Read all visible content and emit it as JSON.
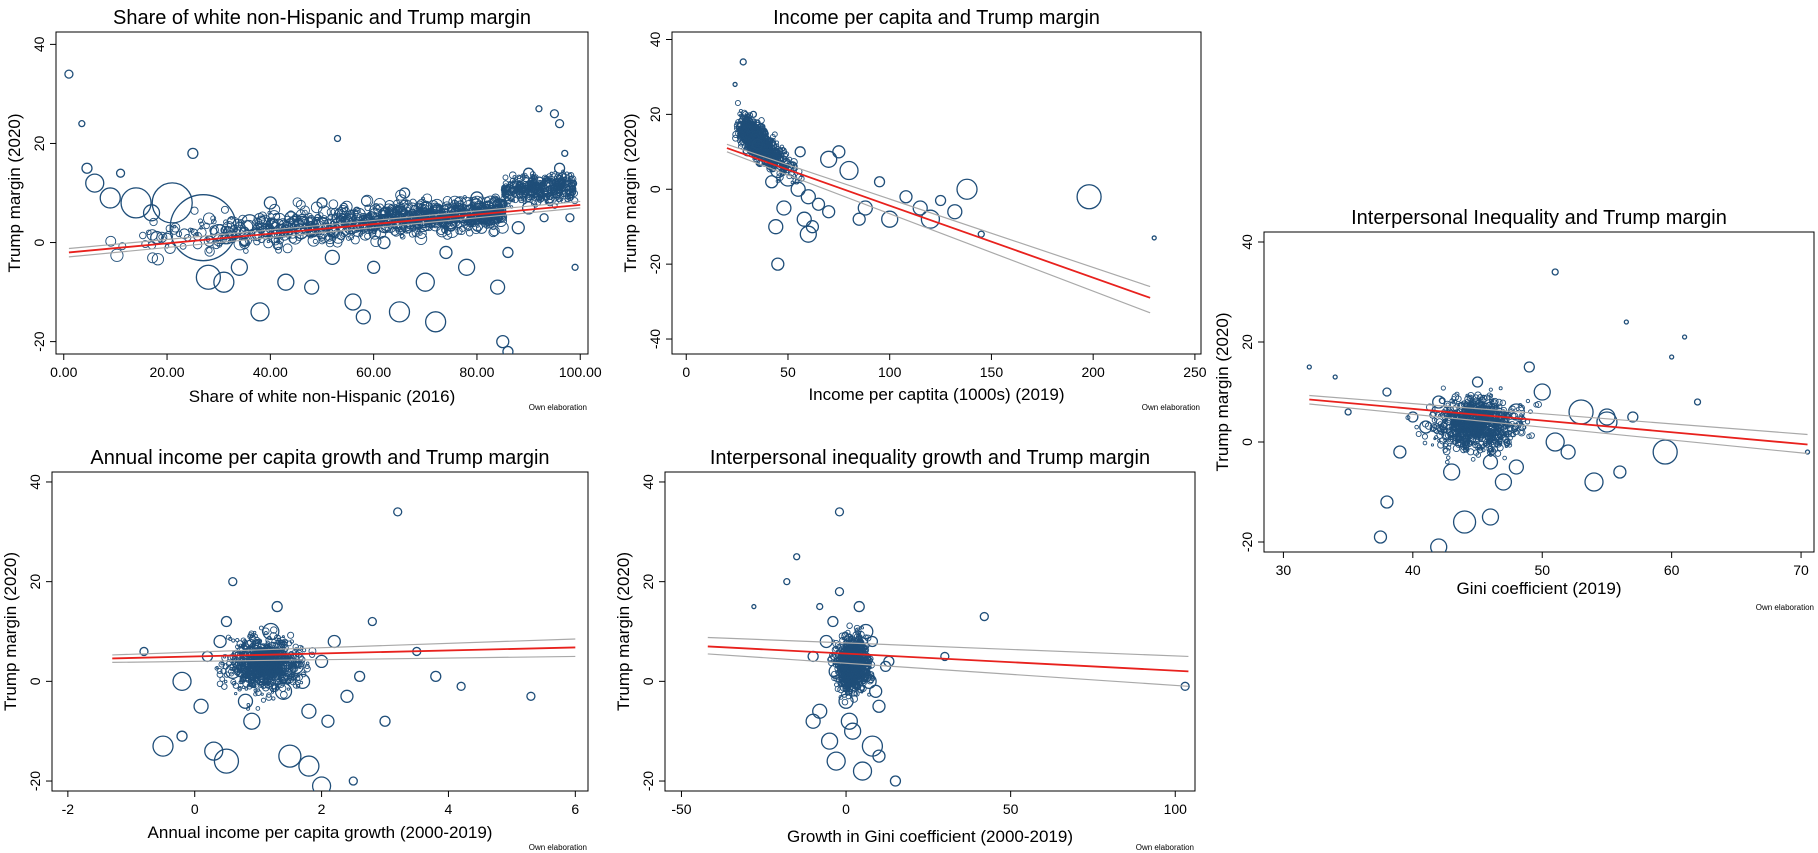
{
  "chart_data": [
    {
      "type": "scatter",
      "title": "Share of white non-Hispanic and Trump margin",
      "xlabel": "Share of white non-Hispanic (2016)",
      "ylabel": "Trump margin (2020)",
      "note": "Own elaboration",
      "xlim": [
        -1.5,
        101.5
      ],
      "ylim": [
        -22.5,
        42.5
      ],
      "xticks": [
        "0.00",
        "20.00",
        "40.00",
        "60.00",
        "80.00",
        "100.00"
      ],
      "yticks": [
        "-20",
        "0",
        "20",
        "40"
      ],
      "fit_line": {
        "x": [
          1,
          100
        ],
        "y": [
          -2.0,
          7.6
        ]
      },
      "ci_upper": {
        "x": [
          1,
          100
        ],
        "y": [
          -1.2,
          8.3
        ]
      },
      "ci_lower": {
        "x": [
          1,
          100
        ],
        "y": [
          -2.9,
          7.0
        ]
      },
      "series": [
        {
          "x": [
            1,
            3.5,
            4.5,
            6,
            9,
            11,
            14,
            17,
            21,
            25,
            27,
            53,
            92,
            95,
            96,
            85,
            86,
            58,
            65
          ],
          "y": [
            34,
            24,
            15,
            12,
            9,
            14,
            8,
            6,
            8,
            18,
            3,
            21,
            27,
            26,
            24,
            -20,
            -22,
            -15,
            -14
          ],
          "size": [
            4,
            3,
            5,
            9,
            10,
            4,
            15,
            8,
            20,
            5,
            33,
            3,
            3,
            4,
            4,
            6,
            5,
            7,
            10
          ]
        },
        {
          "x": [
            18,
            28,
            31,
            34,
            36,
            38,
            43,
            46,
            52,
            56,
            62,
            65,
            70,
            72,
            75,
            78,
            80,
            84,
            88,
            90,
            92,
            94,
            96,
            98,
            55,
            60,
            66,
            74,
            82,
            86,
            90,
            93,
            95,
            97,
            99,
            44,
            48,
            50,
            40,
            30
          ],
          "y": [
            1,
            -7,
            -8,
            -5,
            4,
            -14,
            -8,
            2,
            -3,
            -12,
            0,
            6,
            -8,
            -16,
            4,
            -5,
            9,
            -9,
            3,
            7,
            12,
            9,
            15,
            5,
            4,
            -5,
            10,
            -2,
            6,
            -2,
            14,
            5,
            11,
            18,
            -5,
            5,
            -9,
            8,
            8,
            2
          ],
          "size": [
            6,
            12,
            10,
            8,
            8,
            9,
            8,
            6,
            7,
            8,
            6,
            7,
            9,
            10,
            6,
            8,
            6,
            7,
            6,
            6,
            6,
            5,
            5,
            4,
            5,
            6,
            5,
            6,
            5,
            5,
            5,
            4,
            4,
            3,
            3,
            6,
            7,
            5,
            6,
            8
          ]
        }
      ]
    },
    {
      "type": "scatter",
      "title": "Income per capita and Trump margin",
      "xlabel": "Income per captita (1000s) (2019)",
      "ylabel": "Trump margin (2020)",
      "note": "Own elaboration",
      "xlim": [
        -7,
        253
      ],
      "ylim": [
        -44,
        42
      ],
      "xticks": [
        "0",
        "50",
        "100",
        "150",
        "200",
        "250"
      ],
      "yticks": [
        "-40",
        "-20",
        "0",
        "20",
        "40"
      ],
      "fit_line": {
        "x": [
          20,
          228
        ],
        "y": [
          11,
          -29
        ]
      },
      "ci_upper": {
        "x": [
          20,
          228
        ],
        "y": [
          12,
          -26
        ]
      },
      "ci_lower": {
        "x": [
          20,
          228
        ],
        "y": [
          10,
          -33
        ]
      },
      "series": [
        {
          "x": [
            28,
            24,
            70,
            75,
            80,
            88,
            95,
            100,
            108,
            115,
            120,
            125,
            132,
            138,
            145,
            198,
            230,
            85,
            60,
            45
          ],
          "y": [
            34,
            28,
            8,
            10,
            5,
            -5,
            2,
            -8,
            -2,
            -5,
            -8,
            -3,
            -6,
            0,
            -12,
            -2,
            -13,
            -8,
            -12,
            -20
          ],
          "size": [
            3,
            2,
            8,
            6,
            9,
            7,
            5,
            8,
            6,
            7,
            9,
            5,
            7,
            10,
            3,
            12,
            2,
            6,
            8,
            6
          ]
        },
        {
          "x": [
            30,
            35,
            40,
            45,
            50,
            55,
            60,
            65,
            38,
            42,
            48,
            52,
            58,
            62,
            70,
            33,
            44,
            56
          ],
          "y": [
            10,
            12,
            8,
            5,
            3,
            0,
            -2,
            -4,
            15,
            2,
            -5,
            6,
            -8,
            -10,
            -6,
            20,
            -10,
            10
          ],
          "size": [
            4,
            5,
            6,
            7,
            8,
            7,
            7,
            6,
            4,
            6,
            7,
            5,
            7,
            6,
            6,
            3,
            7,
            5
          ]
        }
      ]
    },
    {
      "type": "scatter",
      "title": "Annual income per capita growth and Trump margin",
      "xlabel": "Annual income per capita growth (2000-2019)",
      "ylabel": "Trump margin (2020)",
      "note": "Own elaboration",
      "xlim": [
        -2.25,
        6.2
      ],
      "ylim": [
        -22,
        42
      ],
      "xticks": [
        "-2",
        "0",
        "2",
        "4",
        "6"
      ],
      "yticks": [
        "-20",
        "0",
        "20",
        "40"
      ],
      "fit_line": {
        "x": [
          -1.3,
          6
        ],
        "y": [
          4.6,
          6.8
        ]
      },
      "ci_upper": {
        "x": [
          -1.3,
          6
        ],
        "y": [
          5.3,
          8.5
        ]
      },
      "ci_lower": {
        "x": [
          -1.3,
          6
        ],
        "y": [
          3.8,
          5.0
        ]
      },
      "series": [
        {
          "x": [
            -0.5,
            -0.2,
            -0.8,
            0.3,
            0.5,
            1.5,
            1.8,
            2.0,
            2.5,
            3.0,
            3.5,
            3.8,
            4.2,
            5.3,
            3.2,
            -0.2,
            0.6
          ],
          "y": [
            -13,
            -11,
            6,
            -14,
            -16,
            -15,
            -17,
            -21,
            -20,
            -8,
            6,
            1,
            -1,
            -3,
            34,
            0,
            20
          ],
          "size": [
            10,
            5,
            4,
            9,
            12,
            11,
            10,
            9,
            4,
            5,
            4,
            5,
            4,
            4,
            4,
            9,
            4
          ]
        },
        {
          "x": [
            0.2,
            0.4,
            0.6,
            0.8,
            1.0,
            1.2,
            1.4,
            1.6,
            1.8,
            2.0,
            2.2,
            2.4,
            2.6,
            2.8,
            0.1,
            0.5,
            0.9,
            1.3,
            1.7,
            2.1
          ],
          "y": [
            5,
            8,
            2,
            -4,
            6,
            10,
            -2,
            3,
            -6,
            4,
            8,
            -3,
            1,
            12,
            -5,
            12,
            -8,
            15,
            0,
            -8
          ],
          "size": [
            5,
            6,
            7,
            7,
            8,
            8,
            8,
            7,
            7,
            6,
            6,
            6,
            5,
            4,
            7,
            5,
            8,
            5,
            7,
            6
          ]
        }
      ]
    },
    {
      "type": "scatter",
      "title": "Interpersonal inequality growth and Trump margin",
      "xlabel": "Growth in Gini coefficient (2000-2019)",
      "ylabel": "Trump margin (2020)",
      "note": "Own elaboration",
      "xlim": [
        -55,
        106
      ],
      "ylim": [
        -22,
        42
      ],
      "xticks": [
        "-50",
        "0",
        "50",
        "100"
      ],
      "yticks": [
        "-20",
        "0",
        "20",
        "40"
      ],
      "fit_line": {
        "x": [
          -42,
          104
        ],
        "y": [
          7.0,
          2.0
        ]
      },
      "ci_upper": {
        "x": [
          -42,
          104
        ],
        "y": [
          8.8,
          5.0
        ]
      },
      "ci_lower": {
        "x": [
          -42,
          104
        ],
        "y": [
          5.5,
          -1.0
        ]
      },
      "series": [
        {
          "x": [
            -2,
            -15,
            -18,
            -28,
            30,
            42,
            103,
            -5,
            10,
            15,
            -10,
            5,
            8,
            -3,
            13,
            -8
          ],
          "y": [
            34,
            25,
            20,
            15,
            5,
            13,
            -1,
            -12,
            -15,
            -20,
            -8,
            -18,
            -13,
            -16,
            4,
            15
          ],
          "size": [
            4,
            3,
            3,
            2,
            4,
            4,
            4,
            8,
            6,
            5,
            7,
            9,
            10,
            9,
            5,
            3
          ]
        },
        {
          "x": [
            -10,
            -6,
            -3,
            0,
            3,
            6,
            9,
            12,
            -8,
            -4,
            1,
            4,
            7,
            10,
            -2,
            2,
            5,
            8
          ],
          "y": [
            5,
            8,
            2,
            -4,
            6,
            10,
            -2,
            3,
            -6,
            12,
            -8,
            15,
            0,
            -5,
            18,
            -10,
            4,
            8
          ],
          "size": [
            5,
            6,
            7,
            7,
            8,
            7,
            6,
            5,
            7,
            5,
            8,
            5,
            7,
            6,
            4,
            8,
            6,
            5
          ]
        }
      ]
    },
    {
      "type": "scatter",
      "title": "Interpersonal Inequality and Trump margin",
      "xlabel": "Gini coefficient (2019)",
      "ylabel": "Trump margin (2020)",
      "note": "Own elaboration",
      "xlim": [
        28.5,
        71
      ],
      "ylim": [
        -22,
        42
      ],
      "xticks": [
        "30",
        "40",
        "50",
        "60",
        "70"
      ],
      "yticks": [
        "-20",
        "0",
        "20",
        "40"
      ],
      "fit_line": {
        "x": [
          32,
          70.5
        ],
        "y": [
          8.5,
          -0.5
        ]
      },
      "ci_upper": {
        "x": [
          32,
          70.5
        ],
        "y": [
          9.3,
          1.5
        ]
      },
      "ci_lower": {
        "x": [
          32,
          70.5
        ],
        "y": [
          7.6,
          -2.3
        ]
      },
      "series": [
        {
          "x": [
            51,
            32,
            34,
            56.5,
            60,
            61,
            37.5,
            42,
            59.5,
            54,
            55,
            46,
            48,
            38,
            44,
            57,
            62,
            35,
            70.5
          ],
          "y": [
            34,
            15,
            13,
            24,
            17,
            21,
            -19,
            -21,
            -2,
            -8,
            5,
            -15,
            -5,
            -12,
            -16,
            5,
            8,
            6,
            -2
          ],
          "size": [
            3,
            2,
            2,
            2,
            2,
            2,
            6,
            8,
            12,
            9,
            8,
            8,
            7,
            6,
            11,
            5,
            3,
            3,
            2
          ]
        },
        {
          "x": [
            40,
            42,
            44,
            46,
            48,
            50,
            52,
            41,
            43,
            45,
            47,
            49,
            51,
            53,
            39,
            55,
            38,
            56
          ],
          "y": [
            5,
            8,
            2,
            -4,
            6,
            10,
            -2,
            3,
            -6,
            12,
            -8,
            15,
            0,
            6,
            -2,
            4,
            10,
            -6
          ],
          "size": [
            5,
            6,
            7,
            7,
            8,
            8,
            7,
            6,
            8,
            5,
            8,
            5,
            9,
            12,
            6,
            10,
            4,
            6
          ]
        }
      ]
    }
  ]
}
